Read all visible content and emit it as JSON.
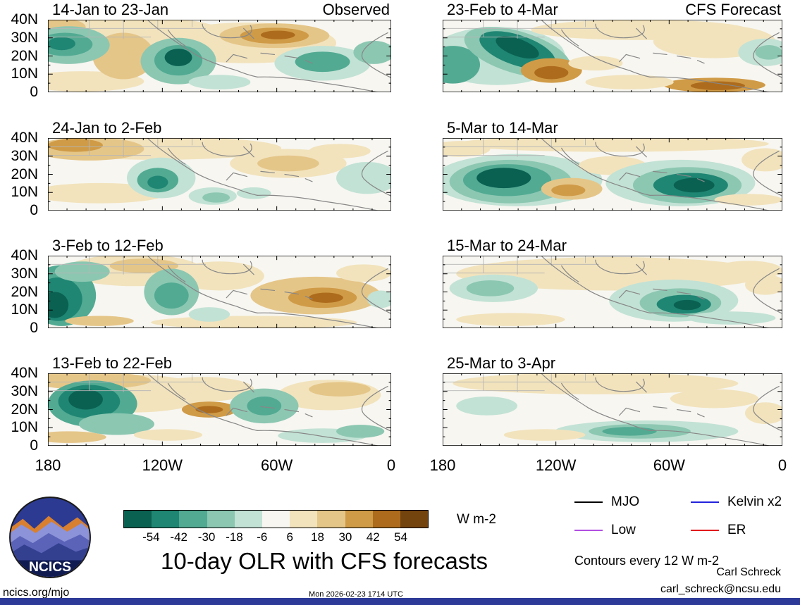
{
  "chart_data": {
    "type": "heatmap",
    "title": "10-day OLR with CFS forecasts",
    "units_label": "W m-2",
    "contour_note": "Contours every 12 W m-2",
    "column_labels": {
      "left": "Observed",
      "right": "CFS Forecast"
    },
    "x_ticks": [
      "180",
      "120W",
      "60W",
      "0"
    ],
    "y_ticks": [
      "40N",
      "30N",
      "20N",
      "10N",
      "0"
    ],
    "colorbar": {
      "levels": [
        -54,
        -42,
        -30,
        -18,
        -6,
        6,
        18,
        30,
        42,
        54
      ],
      "colors": [
        "#0a6152",
        "#1f8673",
        "#52aa92",
        "#8cc7b2",
        "#c2e2d5",
        "#f7f6f1",
        "#f2e3bd",
        "#e5c689",
        "#d09b47",
        "#ad6c1d",
        "#73440e"
      ]
    },
    "legend": [
      {
        "label": "MJO",
        "color": "#000000"
      },
      {
        "label": "Kelvin x2",
        "color": "#2222dd"
      },
      {
        "label": "Low",
        "color": "#b14fe0"
      },
      {
        "label": "ER",
        "color": "#e31a1c"
      }
    ],
    "panels": [
      {
        "title": "14-Jan to 23-Jan",
        "column": "Observed",
        "blobs": [
          [
            25,
            22,
            28,
            26,
            6
          ],
          [
            10,
            85,
            18,
            14,
            6
          ],
          [
            58,
            32,
            26,
            28,
            6
          ],
          [
            22,
            50,
            9,
            32,
            7
          ],
          [
            3,
            10,
            8,
            12,
            7
          ],
          [
            66,
            22,
            16,
            17,
            7
          ],
          [
            66,
            22,
            10,
            11,
            8
          ],
          [
            67,
            21,
            5,
            6,
            9
          ],
          [
            6,
            35,
            12,
            26,
            3
          ],
          [
            5,
            34,
            8,
            16,
            2
          ],
          [
            4,
            33,
            4,
            9,
            1
          ],
          [
            38,
            57,
            11,
            32,
            3
          ],
          [
            38,
            56,
            7,
            21,
            2
          ],
          [
            38,
            52,
            4,
            12,
            0
          ],
          [
            80,
            60,
            14,
            24,
            4
          ],
          [
            80,
            58,
            8,
            14,
            2
          ],
          [
            95,
            45,
            6,
            16,
            3
          ],
          [
            50,
            86,
            9,
            10,
            4
          ]
        ]
      },
      {
        "title": "24-Jan to 2-Feb",
        "column": "Observed",
        "blobs": [
          [
            32,
            14,
            36,
            16,
            6
          ],
          [
            12,
            15,
            16,
            16,
            7
          ],
          [
            8,
            10,
            8,
            9,
            8
          ],
          [
            70,
            35,
            17,
            20,
            6
          ],
          [
            70,
            35,
            9,
            11,
            7
          ],
          [
            15,
            76,
            20,
            14,
            6
          ],
          [
            33,
            55,
            10,
            28,
            4
          ],
          [
            32,
            58,
            6,
            17,
            2
          ],
          [
            32,
            61,
            3,
            9,
            1
          ],
          [
            48,
            80,
            7,
            12,
            4
          ],
          [
            49,
            82,
            4,
            7,
            3
          ],
          [
            60,
            76,
            5,
            8,
            4
          ],
          [
            93,
            55,
            9,
            22,
            4
          ],
          [
            85,
            18,
            9,
            10,
            6
          ]
        ]
      },
      {
        "title": "3-Feb to 12-Feb",
        "column": "Observed",
        "blobs": [
          [
            25,
            20,
            20,
            22,
            6
          ],
          [
            28,
            14,
            10,
            10,
            7
          ],
          [
            50,
            28,
            13,
            20,
            6
          ],
          [
            78,
            55,
            19,
            26,
            7
          ],
          [
            60,
            92,
            30,
            9,
            6
          ],
          [
            92,
            24,
            8,
            12,
            6
          ],
          [
            4,
            55,
            10,
            42,
            2
          ],
          [
            3,
            60,
            7,
            30,
            1
          ],
          [
            2,
            68,
            4,
            18,
            0
          ],
          [
            10,
            22,
            8,
            14,
            3
          ],
          [
            36,
            50,
            8,
            32,
            3
          ],
          [
            36,
            55,
            5,
            18,
            2
          ],
          [
            47,
            81,
            6,
            10,
            4
          ],
          [
            80,
            58,
            10,
            14,
            8
          ],
          [
            81,
            58,
            5,
            7,
            9
          ],
          [
            97,
            60,
            4,
            12,
            4
          ],
          [
            15,
            90,
            10,
            7,
            7
          ]
        ]
      },
      {
        "title": "13-Feb to 22-Feb",
        "column": "Observed",
        "blobs": [
          [
            25,
            28,
            22,
            26,
            6
          ],
          [
            12,
            10,
            18,
            12,
            7
          ],
          [
            45,
            22,
            15,
            17,
            6
          ],
          [
            82,
            30,
            15,
            21,
            6
          ],
          [
            85,
            22,
            9,
            10,
            7
          ],
          [
            6,
            88,
            11,
            8,
            7
          ],
          [
            13,
            42,
            13,
            32,
            2
          ],
          [
            12,
            39,
            9,
            23,
            1
          ],
          [
            11,
            36,
            5,
            14,
            0
          ],
          [
            20,
            70,
            11,
            15,
            3
          ],
          [
            47,
            50,
            8,
            11,
            8
          ],
          [
            47,
            50,
            4,
            5,
            9
          ],
          [
            63,
            45,
            10,
            24,
            3
          ],
          [
            63,
            45,
            5,
            13,
            2
          ],
          [
            80,
            86,
            13,
            10,
            4
          ],
          [
            91,
            80,
            7,
            9,
            3
          ],
          [
            35,
            85,
            10,
            8,
            6
          ]
        ]
      },
      {
        "title": "23-Feb to 4-Mar",
        "column": "CFS Forecast",
        "blobs": [
          [
            16,
            50,
            20,
            40,
            4
          ],
          [
            3,
            62,
            8,
            26,
            2
          ],
          [
            22,
            45,
            13,
            36,
            3,
            -15
          ],
          [
            22,
            42,
            9,
            27,
            1,
            -15
          ],
          [
            22,
            38,
            5,
            16,
            0,
            -15
          ],
          [
            32,
            70,
            9,
            17,
            8
          ],
          [
            32,
            73,
            5,
            9,
            9
          ],
          [
            58,
            14,
            32,
            14,
            6
          ],
          [
            80,
            30,
            18,
            23,
            6
          ],
          [
            95,
            45,
            8,
            19,
            4
          ],
          [
            96,
            45,
            4,
            10,
            3
          ],
          [
            80,
            90,
            15,
            10,
            8
          ],
          [
            81,
            91,
            8,
            6,
            9
          ],
          [
            55,
            86,
            13,
            10,
            6
          ],
          [
            45,
            60,
            8,
            10,
            6
          ]
        ]
      },
      {
        "title": "5-Mar to 14-Mar",
        "column": "CFS Forecast",
        "blobs": [
          [
            50,
            8,
            46,
            11,
            6
          ],
          [
            5,
            15,
            9,
            11,
            6
          ],
          [
            22,
            58,
            25,
            36,
            4
          ],
          [
            20,
            60,
            18,
            30,
            3
          ],
          [
            19,
            58,
            13,
            22,
            2
          ],
          [
            18,
            55,
            8,
            14,
            0
          ],
          [
            38,
            70,
            9,
            15,
            7
          ],
          [
            37,
            72,
            5,
            8,
            8
          ],
          [
            50,
            38,
            10,
            13,
            6
          ],
          [
            70,
            62,
            22,
            32,
            4
          ],
          [
            72,
            65,
            16,
            25,
            3
          ],
          [
            73,
            65,
            11,
            17,
            1
          ],
          [
            74,
            65,
            6,
            10,
            0
          ],
          [
            95,
            30,
            7,
            16,
            6
          ],
          [
            90,
            85,
            10,
            8,
            6
          ]
        ]
      },
      {
        "title": "15-Mar to 24-Mar",
        "column": "CFS Forecast",
        "blobs": [
          [
            50,
            25,
            46,
            23,
            6
          ],
          [
            20,
            88,
            16,
            9,
            6
          ],
          [
            90,
            20,
            10,
            13,
            6
          ],
          [
            15,
            45,
            13,
            19,
            4
          ],
          [
            14,
            45,
            7,
            11,
            3
          ],
          [
            68,
            62,
            19,
            29,
            4
          ],
          [
            70,
            65,
            12,
            20,
            3
          ],
          [
            71,
            67,
            8,
            13,
            1
          ],
          [
            72,
            68,
            4,
            7,
            0
          ],
          [
            85,
            86,
            13,
            9,
            4
          ],
          [
            95,
            40,
            6,
            14,
            6
          ]
        ]
      },
      {
        "title": "25-Mar to 3-Apr",
        "column": "CFS Forecast",
        "blobs": [
          [
            45,
            14,
            42,
            15,
            6
          ],
          [
            80,
            35,
            13,
            13,
            6
          ],
          [
            95,
            55,
            6,
            15,
            6
          ],
          [
            13,
            45,
            9,
            13,
            4
          ],
          [
            60,
            80,
            27,
            15,
            4
          ],
          [
            58,
            80,
            15,
            10,
            3
          ],
          [
            55,
            80,
            8,
            6,
            2
          ],
          [
            30,
            85,
            12,
            8,
            6
          ]
        ]
      }
    ]
  },
  "footer": {
    "logo_text": "NCICS",
    "site": "ncics.org/mjo",
    "timestamp": "Mon 2026-02-23 1714 UTC",
    "credit_name": "Carl Schreck",
    "credit_email": "carl_schreck@ncsu.edu"
  }
}
